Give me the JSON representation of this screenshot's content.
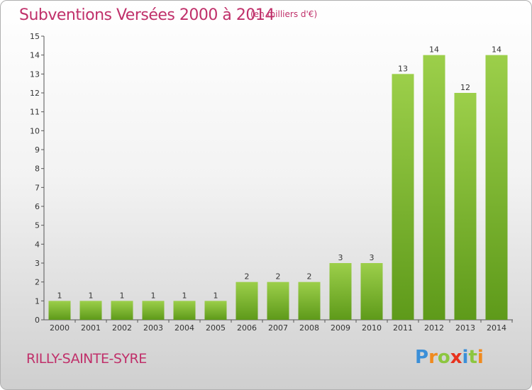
{
  "header": {
    "title": "Subventions Versées 2000 à 2014",
    "subtitle": "(en milliers d'€)"
  },
  "footer": {
    "commune": "RILLY-SAINTE-SYRE",
    "logo_text": "Proxiti"
  },
  "colors": {
    "title": "#c0306a",
    "bar_top": "#9ccf4a",
    "bar_bottom": "#5e9a1a"
  },
  "chart_data": {
    "type": "bar",
    "title": "Subventions Versées 2000 à 2014",
    "subtitle": "(en milliers d'€)",
    "xlabel": "",
    "ylabel": "",
    "categories": [
      "2000",
      "2001",
      "2002",
      "2003",
      "2004",
      "2005",
      "2006",
      "2007",
      "2008",
      "2009",
      "2010",
      "2011",
      "2012",
      "2013",
      "2014"
    ],
    "values": [
      1,
      1,
      1,
      1,
      1,
      1,
      2,
      2,
      2,
      3,
      3,
      13,
      14,
      12,
      14
    ],
    "ylim": [
      0,
      15
    ],
    "yticks": [
      0,
      1,
      2,
      3,
      4,
      5,
      6,
      7,
      8,
      9,
      10,
      11,
      12,
      13,
      14,
      15
    ],
    "grid": false,
    "data_labels": true
  }
}
